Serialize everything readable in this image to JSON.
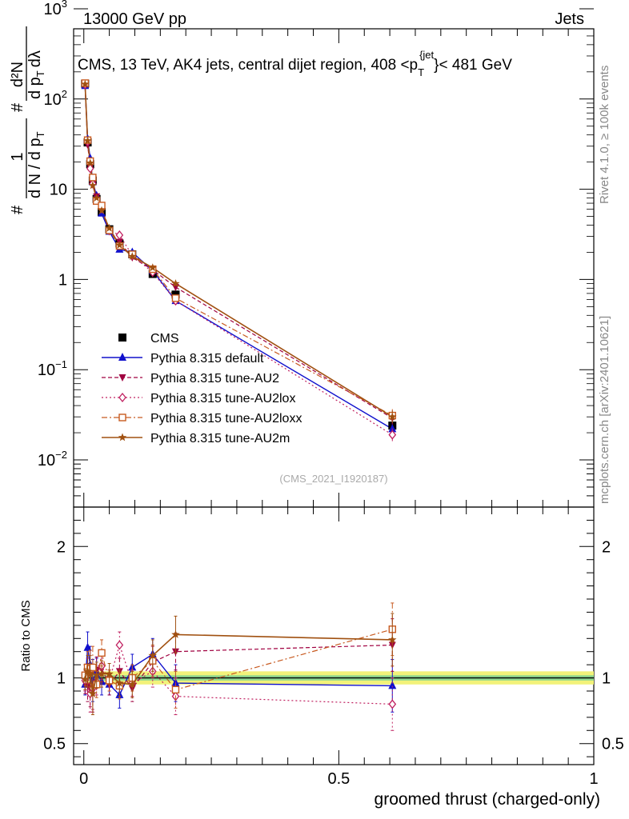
{
  "header": {
    "left": "13000 GeV pp",
    "right": "Jets"
  },
  "side_labels": {
    "top": "Rivet 4.1.0, ≥ 100k events",
    "bottom": "mcplots.cern.ch [arXiv:2401.10621]"
  },
  "watermark": "(CMS_2021_I1920187)",
  "colors": {
    "cms": "#000000",
    "default": "#1010cc",
    "au2": "#a00040",
    "au2lox": "#c02060",
    "au2loxx": "#c85a20",
    "au2m": "#a05010",
    "band_outer": "#f2f27a",
    "band_inner": "#8fd78f"
  },
  "chart_data": [
    {
      "type": "line",
      "title": "CMS, 13 TeV, AK4 jets, central dijet region, 408 < p_T^{jet} < 481 GeV",
      "title_parts": {
        "prefix": "CMS, 13 TeV, AK4 jets, central dijet region, 408 <p",
        "sub": "T",
        "sup": "{jet",
        "suffix": "}< 481 GeV"
      },
      "ylabel": "1 / (dN/dp_T) · d²N / (dp_T dλ)",
      "ylabel_parts": {
        "hash": "#",
        "one": "1",
        "den": "d N / d p",
        "sub": "T",
        "num": "d²N",
        "den2": "d p",
        "lambda": "dλ"
      },
      "yscale": "log",
      "ylim": [
        0.003,
        600
      ],
      "xlim": [
        -0.02,
        1.0
      ],
      "y_ticks": [
        {
          "v": 0.01,
          "base": "10",
          "exp": "−2"
        },
        {
          "v": 0.1,
          "base": "10",
          "exp": "−1"
        },
        {
          "v": 1,
          "base": "1",
          "exp": ""
        },
        {
          "v": 10,
          "base": "10",
          "exp": ""
        },
        {
          "v": 100,
          "base": "10",
          "exp": "2"
        },
        {
          "v": 1000,
          "base": "10",
          "exp": "3"
        }
      ],
      "x": [
        0.0025,
        0.0075,
        0.0125,
        0.0175,
        0.025,
        0.035,
        0.05,
        0.07,
        0.095,
        0.135,
        0.18,
        0.605
      ],
      "series": [
        {
          "name": "CMS",
          "key": "cms",
          "marker": "square",
          "values": [
            148,
            33,
            19,
            12.5,
            7.8,
            5.6,
            3.6,
            2.5,
            1.9,
            1.15,
            0.68,
            0.024
          ]
        },
        {
          "name": "Pythia 8.315 default",
          "key": "default",
          "marker": "triangle-up",
          "values": [
            140,
            36,
            22,
            12,
            8.5,
            5.4,
            3.4,
            2.15,
            2.0,
            1.25,
            0.58,
            0.022
          ]
        },
        {
          "name": "Pythia 8.315 tune-AU2",
          "key": "au2",
          "marker": "triangle-down",
          "values": [
            142,
            31,
            17.5,
            11.3,
            8.3,
            6.0,
            3.4,
            2.6,
            1.75,
            1.28,
            0.82,
            0.029
          ]
        },
        {
          "name": "Pythia 8.315 tune-AU2lox",
          "key": "au2lox",
          "marker": "diamond",
          "values": [
            145,
            34,
            17,
            11.5,
            7.6,
            6.1,
            3.5,
            3.1,
            1.85,
            1.2,
            0.58,
            0.019
          ]
        },
        {
          "name": "Pythia 8.315 tune-AU2loxx",
          "key": "au2loxx",
          "marker": "open-square",
          "values": [
            150,
            35,
            20.5,
            13.5,
            7.4,
            6.6,
            3.5,
            2.35,
            1.9,
            1.3,
            0.62,
            0.031
          ]
        },
        {
          "name": "Pythia 8.315 tune-AU2m",
          "key": "au2m",
          "marker": "star",
          "values": [
            146,
            34.5,
            19.5,
            11,
            8.0,
            5.8,
            3.7,
            2.4,
            1.8,
            1.35,
            0.9,
            0.03
          ]
        }
      ]
    },
    {
      "type": "line",
      "ylabel": "Ratio to CMS",
      "xlabel": "groomed thrust (charged-only)",
      "ylim": [
        0.34,
        2.3
      ],
      "xlim": [
        -0.02,
        1.0
      ],
      "y_ticks": [
        0.5,
        1,
        2
      ],
      "y_tick_labels": [
        "0.5",
        "1",
        "2"
      ],
      "x_ticks": [
        0,
        0.5,
        1
      ],
      "x_tick_labels": [
        "0",
        "0.5",
        "1"
      ],
      "band": {
        "outer": [
          0.95,
          1.05
        ],
        "inner": [
          0.98,
          1.02
        ]
      },
      "x": [
        0.0025,
        0.0075,
        0.0125,
        0.0175,
        0.025,
        0.035,
        0.05,
        0.07,
        0.095,
        0.135,
        0.18,
        0.605
      ],
      "series": [
        {
          "key": "default",
          "values": [
            0.95,
            1.23,
            1.1,
            0.98,
            1.05,
            0.97,
            0.95,
            0.87,
            1.08,
            1.18,
            0.96,
            0.94
          ]
        },
        {
          "key": "au2",
          "values": [
            0.96,
            0.94,
            0.92,
            0.9,
            1.06,
            1.07,
            0.95,
            1.05,
            0.92,
            1.12,
            1.2,
            1.25
          ]
        },
        {
          "key": "au2lox",
          "values": [
            0.98,
            1.03,
            0.88,
            0.92,
            0.97,
            1.09,
            0.98,
            1.25,
            0.96,
            1.05,
            0.86,
            0.8
          ]
        },
        {
          "key": "au2loxx",
          "values": [
            1.02,
            1.08,
            1.07,
            1.08,
            0.95,
            1.19,
            0.98,
            0.94,
            1.0,
            1.13,
            0.91,
            1.37
          ]
        },
        {
          "key": "au2m",
          "values": [
            0.99,
            1.05,
            1.03,
            0.88,
            1.02,
            1.03,
            1.03,
            0.96,
            0.95,
            1.17,
            1.33,
            1.29
          ]
        }
      ],
      "errors": [
        0.08,
        0.12,
        0.14,
        0.16,
        0.1,
        0.1,
        0.08,
        0.1,
        0.1,
        0.12,
        0.14,
        0.2
      ]
    }
  ]
}
